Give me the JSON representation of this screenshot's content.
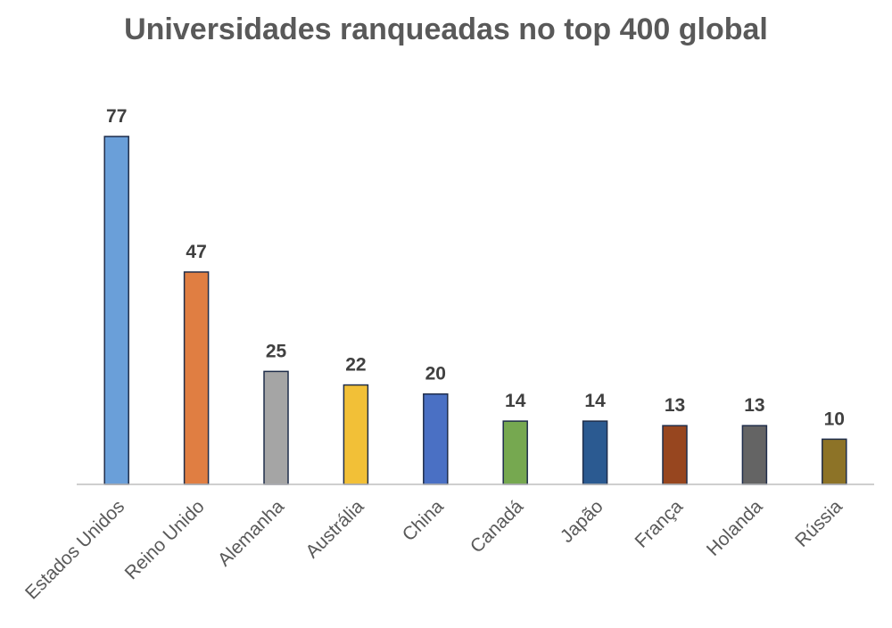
{
  "chart_data": {
    "type": "bar",
    "title": "Universidades ranqueadas no top 400 global",
    "categories": [
      "Estados Unidos",
      "Reino Unido",
      "Alemanha",
      "Austrália",
      "China",
      "Canadá",
      "Japão",
      "França",
      "Holanda",
      "Rússia"
    ],
    "values": [
      77,
      47,
      25,
      22,
      20,
      14,
      14,
      13,
      13,
      10
    ],
    "colors": [
      "#6a9fd9",
      "#e07e42",
      "#a5a5a5",
      "#f2c037",
      "#4a70c4",
      "#76a850",
      "#2b5a91",
      "#97461f",
      "#646464",
      "#8d7327"
    ],
    "xlabel": "",
    "ylabel": "",
    "ylim": [
      0,
      77
    ],
    "grid": false,
    "legend": "none",
    "data_labels": true
  }
}
